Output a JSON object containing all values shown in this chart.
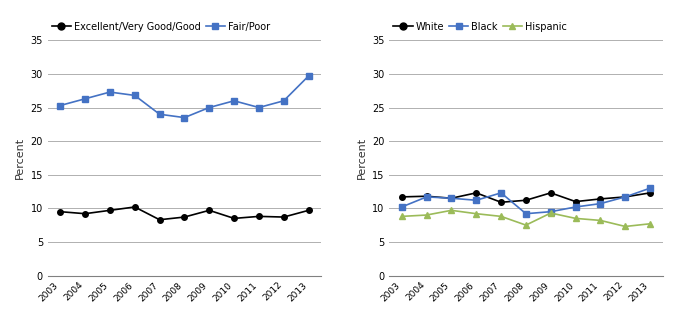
{
  "years": [
    2003,
    2004,
    2005,
    2006,
    2007,
    2008,
    2009,
    2010,
    2011,
    2012,
    2013
  ],
  "left_chart": {
    "excellent_good": [
      9.5,
      9.2,
      9.7,
      10.2,
      8.3,
      8.7,
      9.7,
      8.5,
      8.8,
      8.7,
      9.7
    ],
    "fair_poor": [
      25.3,
      26.3,
      27.3,
      26.8,
      24.0,
      23.5,
      25.0,
      26.0,
      25.0,
      26.0,
      29.7
    ]
  },
  "right_chart": {
    "white": [
      11.7,
      11.8,
      11.5,
      12.3,
      10.9,
      11.2,
      12.3,
      11.0,
      11.4,
      11.7,
      12.3
    ],
    "black": [
      10.2,
      11.7,
      11.5,
      11.2,
      12.3,
      9.2,
      9.5,
      10.2,
      10.7,
      11.7,
      13.0
    ],
    "hispanic": [
      8.8,
      9.0,
      9.7,
      9.2,
      8.8,
      7.5,
      9.3,
      8.5,
      8.2,
      7.3,
      7.7
    ]
  },
  "left_legend": [
    {
      "label": "Excellent/Very Good/Good",
      "color": "#000000",
      "marker": "o"
    },
    {
      "label": "Fair/Poor",
      "color": "#4472C4",
      "marker": "s"
    }
  ],
  "right_legend": [
    {
      "label": "White",
      "color": "#000000",
      "marker": "o"
    },
    {
      "label": "Black",
      "color": "#4472C4",
      "marker": "s"
    },
    {
      "label": "Hispanic",
      "color": "#9BBB59",
      "marker": "^"
    }
  ],
  "ylabel": "Percent",
  "ylim": [
    0,
    35
  ],
  "yticks": [
    0,
    5,
    10,
    15,
    20,
    25,
    30,
    35
  ],
  "background_color": "#ffffff",
  "grid_color": "#b0b0b0"
}
